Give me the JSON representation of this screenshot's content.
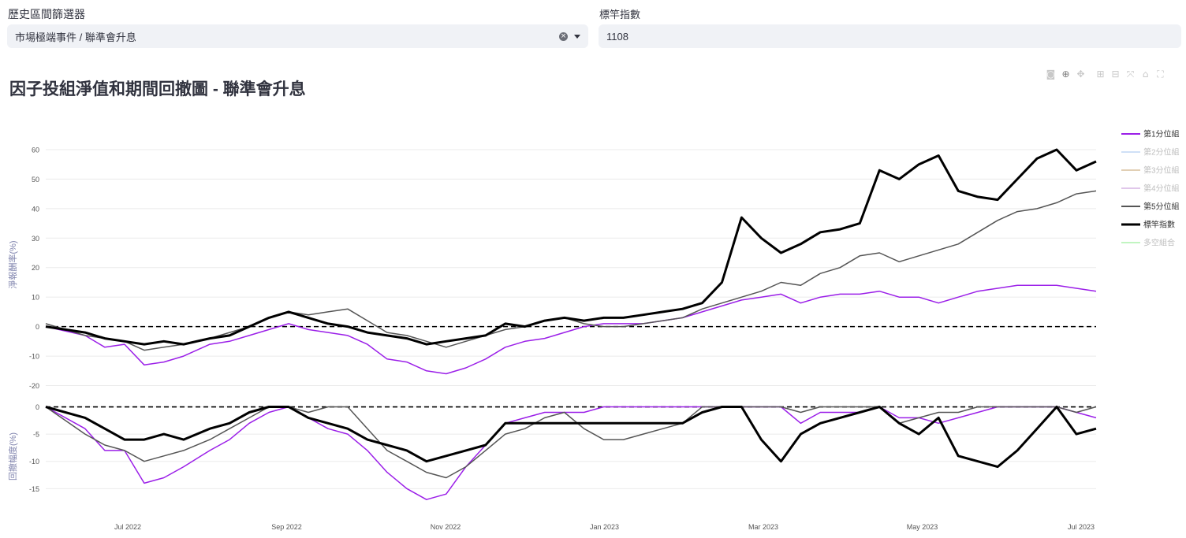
{
  "filters": {
    "range_label": "歷史區間篩選器",
    "range_value": "市場極端事件 / 聯準會升息",
    "benchmark_label": "標竿指數",
    "benchmark_value": "1108"
  },
  "modebar_icons": [
    "camera-icon",
    "zoom-icon",
    "pan-icon",
    "zoom-in-icon",
    "zoom-out-icon",
    "autoscale-icon",
    "home-icon",
    "fullscreen-icon"
  ],
  "chart_data": {
    "type": "line",
    "title": "因子投組淨值和期間回撤圖 - 聯準會升息",
    "x_ticks": [
      "Jul 2022",
      "Sep 2022",
      "Nov 2022",
      "Jan 2023",
      "Mar 2023",
      "May 2023",
      "Jul 2023"
    ],
    "legend": [
      "第1分位組",
      "第2分位組",
      "第3分位組",
      "第4分位組",
      "第5分位組",
      "標竿指數",
      "多空組合"
    ],
    "legend_placement": "right",
    "panels": [
      {
        "name": "return",
        "ylabel": "淨報酬率(%)",
        "ylim": [
          -22,
          64
        ],
        "yticks": [
          -20,
          -10,
          0,
          10,
          20,
          30,
          40,
          50,
          60
        ]
      },
      {
        "name": "drawdown",
        "ylabel": "回撤幅度(%)",
        "ylim": [
          -19,
          0.8
        ],
        "yticks": [
          -15,
          -10,
          -5,
          0
        ]
      }
    ],
    "series": [
      {
        "name": "第1分位組",
        "color": "#9b1fe8",
        "visible": true,
        "return": [
          [
            0,
            0
          ],
          [
            6,
            -3
          ],
          [
            9,
            -7
          ],
          [
            12,
            -6
          ],
          [
            15,
            -13
          ],
          [
            18,
            -12
          ],
          [
            21,
            -10
          ],
          [
            25,
            -6
          ],
          [
            28,
            -5
          ],
          [
            31,
            -3
          ],
          [
            34,
            -1
          ],
          [
            37,
            1
          ],
          [
            40,
            -1
          ],
          [
            43,
            -2
          ],
          [
            46,
            -3
          ],
          [
            49,
            -6
          ],
          [
            52,
            -11
          ],
          [
            55,
            -12
          ],
          [
            58,
            -15
          ],
          [
            61,
            -16
          ],
          [
            64,
            -14
          ],
          [
            67,
            -11
          ],
          [
            70,
            -7
          ],
          [
            73,
            -5
          ],
          [
            76,
            -4
          ],
          [
            79,
            -2
          ],
          [
            82,
            0
          ],
          [
            85,
            1
          ],
          [
            88,
            1
          ],
          [
            91,
            1
          ],
          [
            94,
            2
          ],
          [
            97,
            3
          ],
          [
            100,
            5
          ],
          [
            103,
            7
          ],
          [
            106,
            9
          ],
          [
            109,
            10
          ],
          [
            112,
            11
          ],
          [
            115,
            8
          ],
          [
            118,
            10
          ],
          [
            121,
            11
          ],
          [
            124,
            11
          ],
          [
            127,
            12
          ],
          [
            130,
            10
          ],
          [
            133,
            10
          ],
          [
            136,
            8
          ],
          [
            139,
            10
          ],
          [
            142,
            12
          ],
          [
            145,
            13
          ],
          [
            148,
            14
          ],
          [
            151,
            14
          ],
          [
            154,
            14
          ],
          [
            157,
            13
          ],
          [
            160,
            12
          ]
        ],
        "drawdown": [
          [
            0,
            0
          ],
          [
            6,
            -4
          ],
          [
            9,
            -8
          ],
          [
            12,
            -8
          ],
          [
            15,
            -14
          ],
          [
            18,
            -13
          ],
          [
            21,
            -11
          ],
          [
            25,
            -8
          ],
          [
            28,
            -6
          ],
          [
            31,
            -3
          ],
          [
            34,
            -1
          ],
          [
            37,
            0
          ],
          [
            40,
            -2
          ],
          [
            43,
            -4
          ],
          [
            46,
            -5
          ],
          [
            49,
            -8
          ],
          [
            52,
            -12
          ],
          [
            55,
            -15
          ],
          [
            58,
            -17
          ],
          [
            61,
            -16
          ],
          [
            64,
            -11
          ],
          [
            67,
            -7
          ],
          [
            70,
            -3
          ],
          [
            73,
            -2
          ],
          [
            76,
            -1
          ],
          [
            79,
            -1
          ],
          [
            82,
            -1
          ],
          [
            85,
            0
          ],
          [
            88,
            0
          ],
          [
            91,
            0
          ],
          [
            94,
            0
          ],
          [
            97,
            0
          ],
          [
            100,
            0
          ],
          [
            103,
            0
          ],
          [
            106,
            0
          ],
          [
            109,
            0
          ],
          [
            112,
            0
          ],
          [
            115,
            -3
          ],
          [
            118,
            -1
          ],
          [
            121,
            -1
          ],
          [
            124,
            -1
          ],
          [
            127,
            0
          ],
          [
            130,
            -2
          ],
          [
            133,
            -2
          ],
          [
            136,
            -3
          ],
          [
            139,
            -2
          ],
          [
            142,
            -1
          ],
          [
            145,
            0
          ],
          [
            148,
            0
          ],
          [
            151,
            0
          ],
          [
            154,
            0
          ],
          [
            157,
            -1
          ],
          [
            160,
            -2
          ]
        ]
      },
      {
        "name": "第2分位組",
        "color": "#a8c8f0",
        "visible": false
      },
      {
        "name": "第3分位組",
        "color": "#c9a878",
        "visible": false
      },
      {
        "name": "第4分位組",
        "color": "#c79bd9",
        "visible": false
      },
      {
        "name": "第5分位組",
        "color": "#555555",
        "visible": true,
        "return": [
          [
            0,
            1
          ],
          [
            6,
            -3
          ],
          [
            9,
            -4
          ],
          [
            12,
            -5
          ],
          [
            15,
            -8
          ],
          [
            18,
            -7
          ],
          [
            21,
            -6
          ],
          [
            25,
            -4
          ],
          [
            28,
            -2
          ],
          [
            31,
            0
          ],
          [
            34,
            3
          ],
          [
            37,
            5
          ],
          [
            40,
            4
          ],
          [
            43,
            5
          ],
          [
            46,
            6
          ],
          [
            49,
            2
          ],
          [
            52,
            -2
          ],
          [
            55,
            -3
          ],
          [
            58,
            -5
          ],
          [
            61,
            -7
          ],
          [
            64,
            -5
          ],
          [
            67,
            -3
          ],
          [
            70,
            -1
          ],
          [
            73,
            0
          ],
          [
            76,
            2
          ],
          [
            79,
            3
          ],
          [
            82,
            1
          ],
          [
            85,
            0
          ],
          [
            88,
            0
          ],
          [
            91,
            1
          ],
          [
            94,
            2
          ],
          [
            97,
            3
          ],
          [
            100,
            6
          ],
          [
            103,
            8
          ],
          [
            106,
            10
          ],
          [
            109,
            12
          ],
          [
            112,
            15
          ],
          [
            115,
            14
          ],
          [
            118,
            18
          ],
          [
            121,
            20
          ],
          [
            124,
            24
          ],
          [
            127,
            25
          ],
          [
            130,
            22
          ],
          [
            133,
            24
          ],
          [
            136,
            26
          ],
          [
            139,
            28
          ],
          [
            142,
            32
          ],
          [
            145,
            36
          ],
          [
            148,
            39
          ],
          [
            151,
            40
          ],
          [
            154,
            42
          ],
          [
            157,
            45
          ],
          [
            160,
            46
          ]
        ],
        "drawdown": [
          [
            0,
            0
          ],
          [
            6,
            -5
          ],
          [
            9,
            -7
          ],
          [
            12,
            -8
          ],
          [
            15,
            -10
          ],
          [
            18,
            -9
          ],
          [
            21,
            -8
          ],
          [
            25,
            -6
          ],
          [
            28,
            -4
          ],
          [
            31,
            -2
          ],
          [
            34,
            0
          ],
          [
            37,
            0
          ],
          [
            40,
            -1
          ],
          [
            43,
            0
          ],
          [
            46,
            0
          ],
          [
            49,
            -4
          ],
          [
            52,
            -8
          ],
          [
            55,
            -10
          ],
          [
            58,
            -12
          ],
          [
            61,
            -13
          ],
          [
            64,
            -11
          ],
          [
            67,
            -8
          ],
          [
            70,
            -5
          ],
          [
            73,
            -4
          ],
          [
            76,
            -2
          ],
          [
            79,
            -1
          ],
          [
            82,
            -4
          ],
          [
            85,
            -6
          ],
          [
            88,
            -6
          ],
          [
            91,
            -5
          ],
          [
            94,
            -4
          ],
          [
            97,
            -3
          ],
          [
            100,
            0
          ],
          [
            103,
            0
          ],
          [
            106,
            0
          ],
          [
            109,
            0
          ],
          [
            112,
            0
          ],
          [
            115,
            -1
          ],
          [
            118,
            0
          ],
          [
            121,
            0
          ],
          [
            124,
            0
          ],
          [
            127,
            0
          ],
          [
            130,
            -3
          ],
          [
            133,
            -2
          ],
          [
            136,
            -1
          ],
          [
            139,
            -1
          ],
          [
            142,
            0
          ],
          [
            145,
            0
          ],
          [
            148,
            0
          ],
          [
            151,
            0
          ],
          [
            154,
            0
          ],
          [
            157,
            -1
          ],
          [
            160,
            0
          ]
        ]
      },
      {
        "name": "標竿指數",
        "color": "#000000",
        "visible": true,
        "return": [
          [
            0,
            0
          ],
          [
            6,
            -2
          ],
          [
            9,
            -4
          ],
          [
            12,
            -5
          ],
          [
            15,
            -6
          ],
          [
            18,
            -5
          ],
          [
            21,
            -6
          ],
          [
            25,
            -4
          ],
          [
            28,
            -3
          ],
          [
            31,
            0
          ],
          [
            34,
            3
          ],
          [
            37,
            5
          ],
          [
            40,
            3
          ],
          [
            43,
            1
          ],
          [
            46,
            0
          ],
          [
            49,
            -2
          ],
          [
            52,
            -3
          ],
          [
            55,
            -4
          ],
          [
            58,
            -6
          ],
          [
            61,
            -5
          ],
          [
            64,
            -4
          ],
          [
            67,
            -3
          ],
          [
            70,
            1
          ],
          [
            73,
            0
          ],
          [
            76,
            2
          ],
          [
            79,
            3
          ],
          [
            82,
            2
          ],
          [
            85,
            3
          ],
          [
            88,
            3
          ],
          [
            91,
            4
          ],
          [
            94,
            5
          ],
          [
            97,
            6
          ],
          [
            100,
            8
          ],
          [
            103,
            15
          ],
          [
            106,
            37
          ],
          [
            109,
            30
          ],
          [
            112,
            25
          ],
          [
            115,
            28
          ],
          [
            118,
            32
          ],
          [
            121,
            33
          ],
          [
            124,
            35
          ],
          [
            127,
            53
          ],
          [
            130,
            50
          ],
          [
            133,
            55
          ],
          [
            136,
            58
          ],
          [
            139,
            46
          ],
          [
            142,
            44
          ],
          [
            145,
            43
          ],
          [
            148,
            50
          ],
          [
            151,
            57
          ],
          [
            154,
            60
          ],
          [
            157,
            53
          ],
          [
            160,
            56
          ]
        ],
        "drawdown": [
          [
            0,
            0
          ],
          [
            6,
            -2
          ],
          [
            9,
            -4
          ],
          [
            12,
            -6
          ],
          [
            15,
            -6
          ],
          [
            18,
            -5
          ],
          [
            21,
            -6
          ],
          [
            25,
            -4
          ],
          [
            28,
            -3
          ],
          [
            31,
            -1
          ],
          [
            34,
            0
          ],
          [
            37,
            0
          ],
          [
            40,
            -2
          ],
          [
            43,
            -3
          ],
          [
            46,
            -4
          ],
          [
            49,
            -6
          ],
          [
            52,
            -7
          ],
          [
            55,
            -8
          ],
          [
            58,
            -10
          ],
          [
            61,
            -9
          ],
          [
            64,
            -8
          ],
          [
            67,
            -7
          ],
          [
            70,
            -3
          ],
          [
            73,
            -3
          ],
          [
            76,
            -3
          ],
          [
            79,
            -3
          ],
          [
            82,
            -3
          ],
          [
            85,
            -3
          ],
          [
            88,
            -3
          ],
          [
            91,
            -3
          ],
          [
            94,
            -3
          ],
          [
            97,
            -3
          ],
          [
            100,
            -1
          ],
          [
            103,
            0
          ],
          [
            106,
            0
          ],
          [
            109,
            -6
          ],
          [
            112,
            -10
          ],
          [
            115,
            -5
          ],
          [
            118,
            -3
          ],
          [
            121,
            -2
          ],
          [
            124,
            -1
          ],
          [
            127,
            0
          ],
          [
            130,
            -3
          ],
          [
            133,
            -5
          ],
          [
            136,
            -2
          ],
          [
            139,
            -9
          ],
          [
            142,
            -10
          ],
          [
            145,
            -11
          ],
          [
            148,
            -8
          ],
          [
            151,
            -4
          ],
          [
            154,
            0
          ],
          [
            157,
            -5
          ],
          [
            160,
            -4
          ]
        ]
      },
      {
        "name": "多空組合",
        "color": "#90ee90",
        "visible": false
      }
    ]
  }
}
